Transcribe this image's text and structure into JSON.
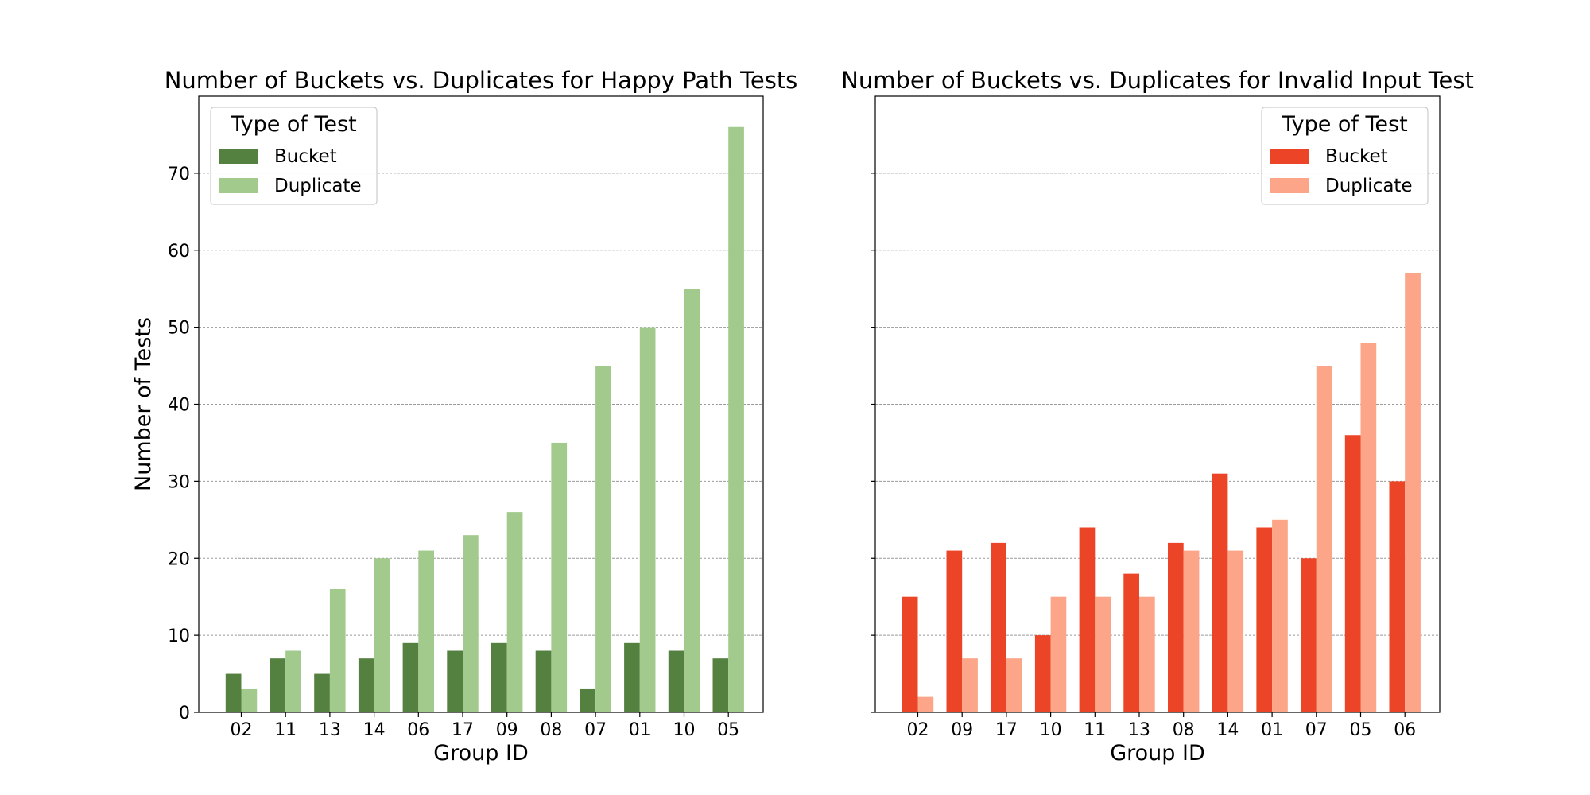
{
  "chart_data": [
    {
      "type": "bar",
      "title": "Number of Buckets vs. Duplicates for Happy Path Tests",
      "xlabel": "Group ID",
      "ylabel": "Number of Tests",
      "ylim": [
        0,
        80
      ],
      "yticks": [
        0,
        10,
        20,
        30,
        40,
        50,
        60,
        70
      ],
      "grid": "horizontal",
      "legend_title": "Type of Test",
      "legend_placement": "top-left",
      "categories": [
        "02",
        "11",
        "13",
        "14",
        "06",
        "17",
        "09",
        "08",
        "07",
        "01",
        "10",
        "05"
      ],
      "series": [
        {
          "name": "Bucket",
          "color": "#548040",
          "values": [
            5,
            7,
            5,
            7,
            9,
            8,
            9,
            8,
            3,
            9,
            8,
            7
          ]
        },
        {
          "name": "Duplicate",
          "color": "#a1ca8c",
          "values": [
            3,
            8,
            16,
            20,
            21,
            23,
            26,
            35,
            45,
            50,
            55,
            76
          ]
        }
      ]
    },
    {
      "type": "bar",
      "title": "Number of Buckets vs. Duplicates for Invalid Input Test",
      "xlabel": "Group ID",
      "ylabel": "",
      "ylim": [
        0,
        80
      ],
      "yticks": [
        0,
        10,
        20,
        30,
        40,
        50,
        60,
        70
      ],
      "grid": "horizontal",
      "legend_title": "Type of Test",
      "legend_placement": "top-right",
      "categories": [
        "02",
        "09",
        "17",
        "10",
        "11",
        "13",
        "08",
        "14",
        "01",
        "07",
        "05",
        "06"
      ],
      "series": [
        {
          "name": "Bucket",
          "color": "#eb4427",
          "values": [
            15,
            21,
            22,
            10,
            24,
            18,
            22,
            31,
            24,
            20,
            36,
            30
          ]
        },
        {
          "name": "Duplicate",
          "color": "#fca588",
          "values": [
            2,
            7,
            7,
            15,
            15,
            15,
            21,
            21,
            25,
            45,
            48,
            57
          ]
        }
      ]
    }
  ]
}
